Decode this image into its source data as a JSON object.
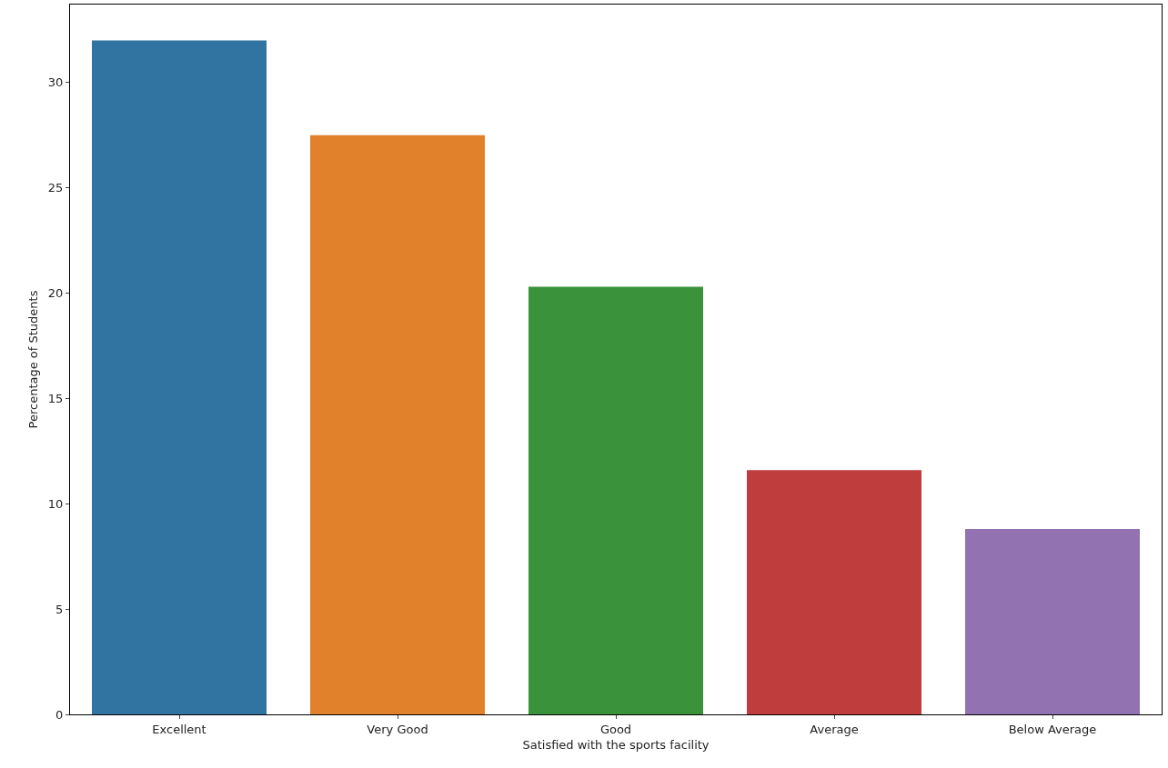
{
  "chart_data": {
    "type": "bar",
    "xlabel": "Satisfied with the sports facility",
    "ylabel": "Percentage of Students",
    "categories": [
      "Excellent",
      "Very Good",
      "Good",
      "Average",
      "Below Average"
    ],
    "values": [
      32.0,
      27.5,
      20.3,
      11.6,
      8.8
    ],
    "colors": [
      "#3274a1",
      "#e1812c",
      "#3a923a",
      "#c03d3e",
      "#9372b2"
    ],
    "ylim": [
      0,
      33.7
    ],
    "yticks": [
      0,
      5,
      10,
      15,
      20,
      25,
      30
    ],
    "grid": false
  }
}
